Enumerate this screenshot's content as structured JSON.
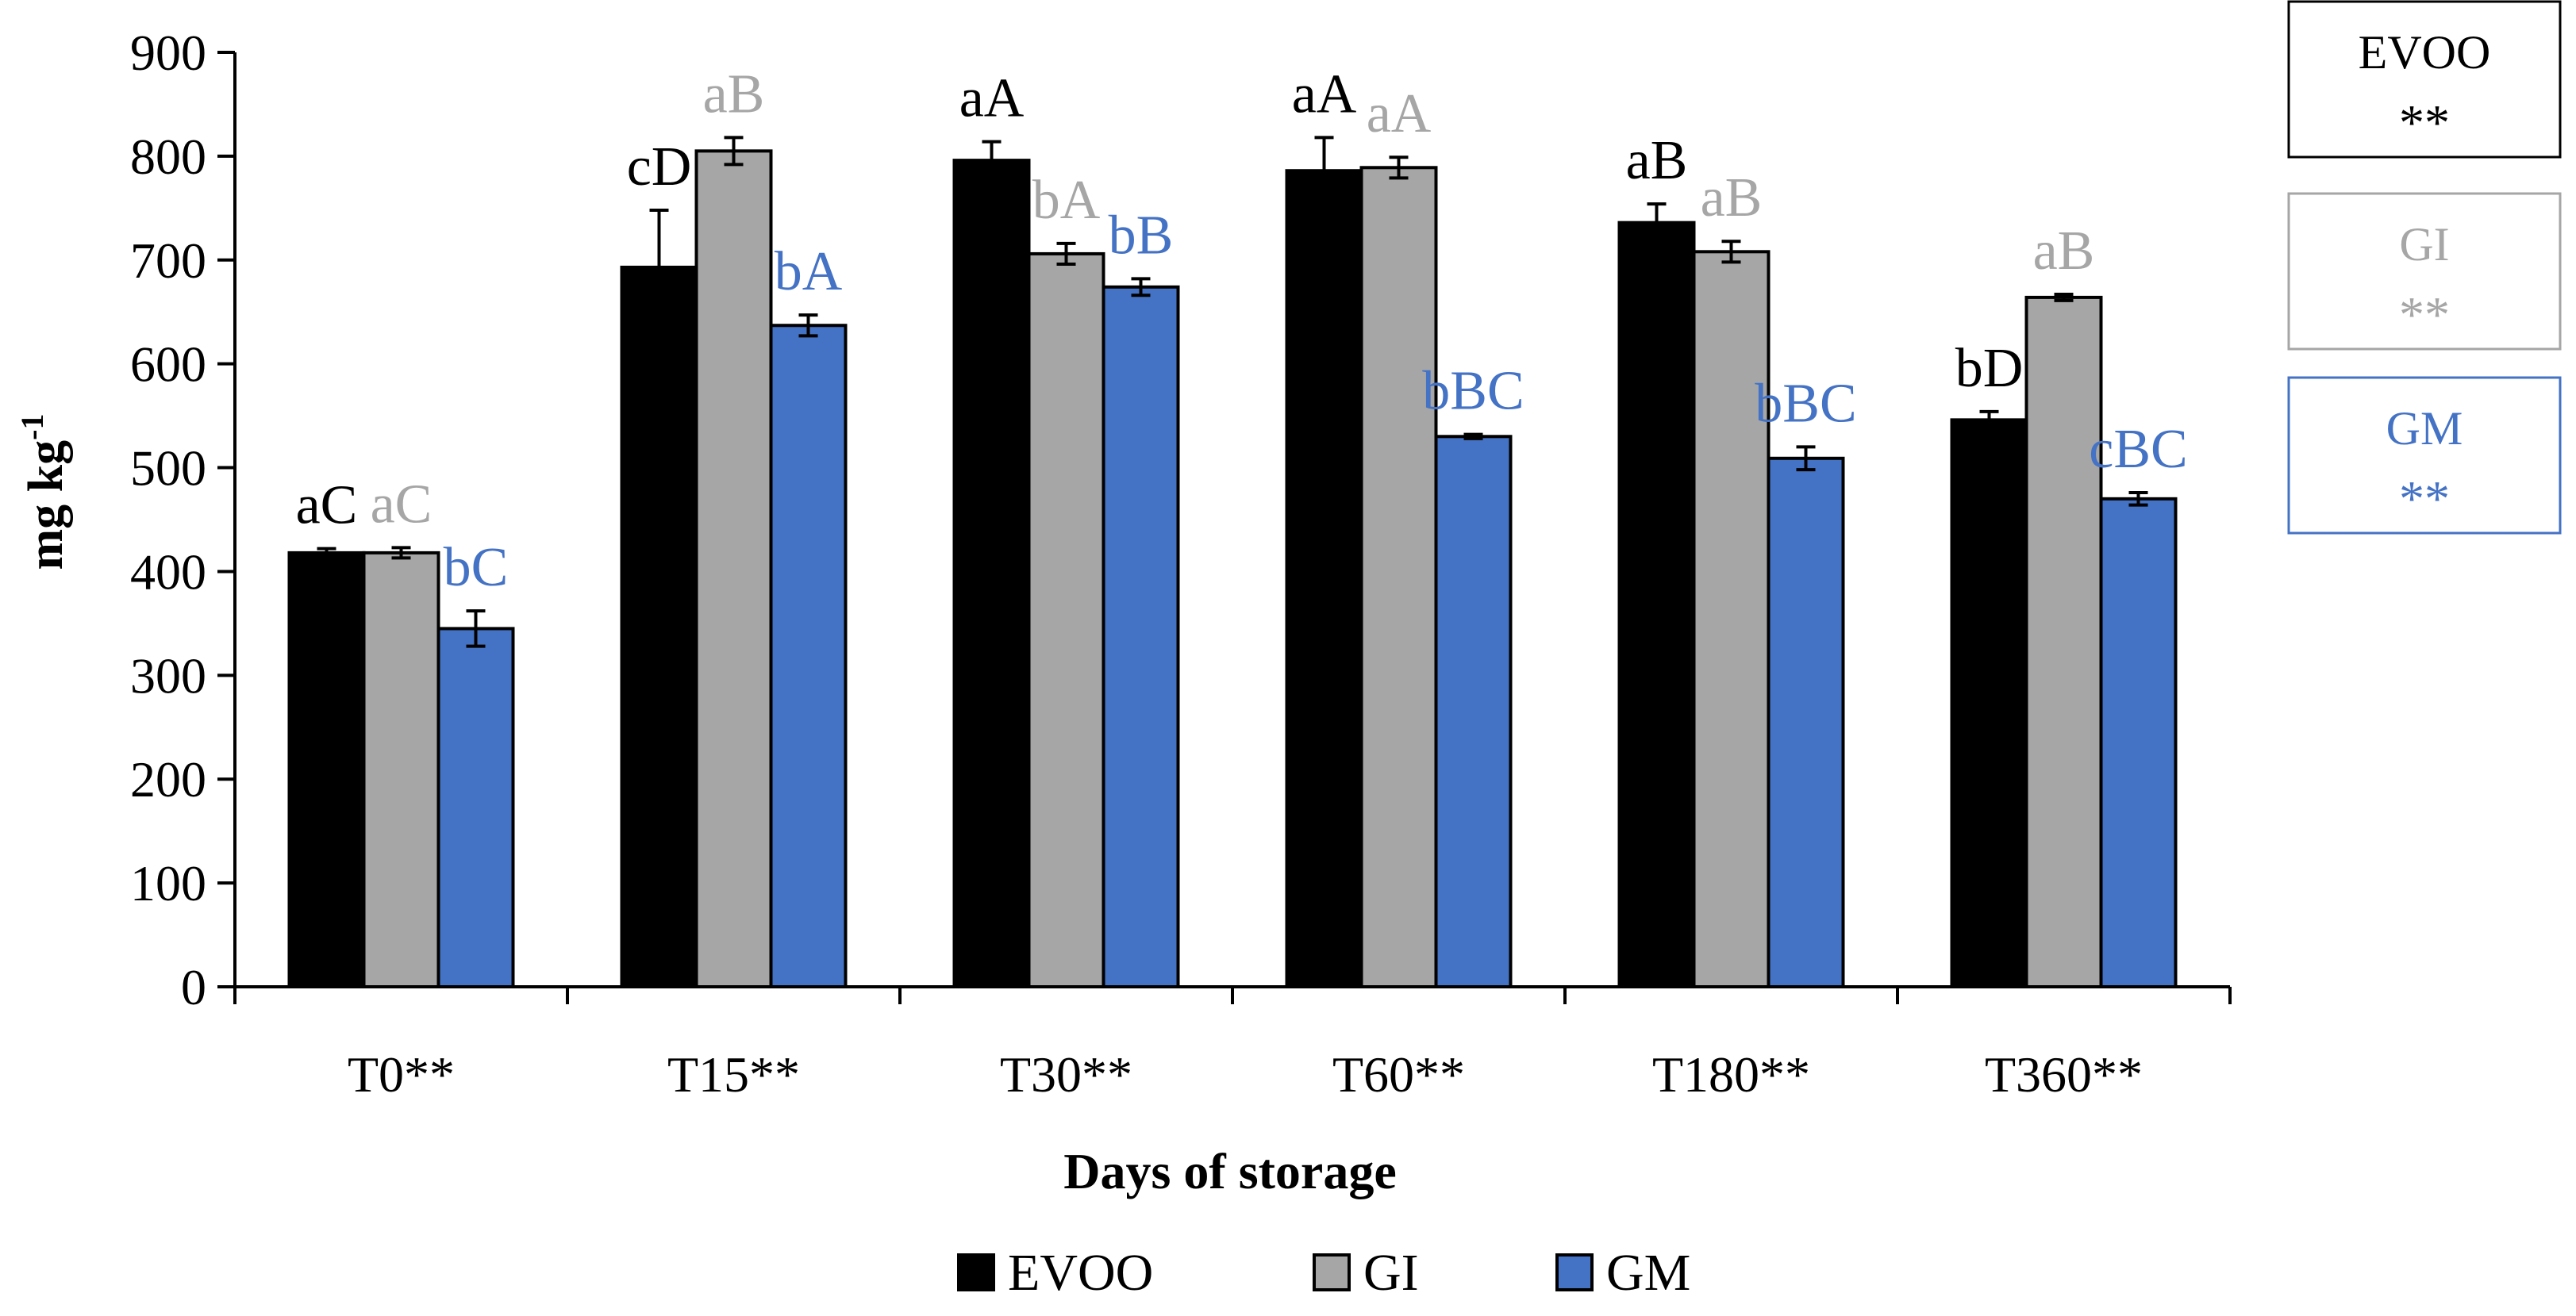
{
  "chart_data": {
    "type": "bar",
    "title": "",
    "xlabel": "Days of storage",
    "ylabel": "mg kg",
    "ylabel_superscript": "-1",
    "ylim": [
      0,
      900
    ],
    "yticks": [
      0,
      100,
      200,
      300,
      400,
      500,
      600,
      700,
      800,
      900
    ],
    "grid": false,
    "legend_position": "bottom",
    "categories": [
      "T0**",
      "T15**",
      "T30**",
      "T60**",
      "T180**",
      "T360**"
    ],
    "series": [
      {
        "name": "EVOO",
        "color": "#000000",
        "label_color": "#000000",
        "values": [
          418,
          693,
          796,
          786,
          736,
          546
        ],
        "errors": [
          4,
          55,
          18,
          32,
          18,
          8
        ],
        "letters": [
          "aC",
          "cD",
          "aA",
          "aA",
          "aB",
          "bD"
        ]
      },
      {
        "name": "GI",
        "color": "#a6a6a6",
        "label_color": "#a6a6a6",
        "values": [
          418,
          805,
          706,
          789,
          708,
          664
        ],
        "errors": [
          5,
          13,
          10,
          10,
          10,
          3
        ],
        "letters": [
          "aC",
          "aB",
          "bA",
          "aA",
          "aB",
          "aB"
        ]
      },
      {
        "name": "GM",
        "color": "#4472c4",
        "label_color": "#4472c4",
        "values": [
          345,
          637,
          674,
          530,
          509,
          470
        ],
        "errors": [
          17,
          10,
          8,
          2,
          11,
          6
        ],
        "letters": [
          "bC",
          "bA",
          "bB",
          "bBC",
          "bBC",
          "cBC"
        ]
      }
    ],
    "side_boxes": [
      {
        "label": "EVOO",
        "mark": "**",
        "color": "#000000"
      },
      {
        "label": "GI",
        "mark": "**",
        "color": "#a6a6a6"
      },
      {
        "label": "GM",
        "mark": "**",
        "color": "#4472c4"
      }
    ]
  }
}
